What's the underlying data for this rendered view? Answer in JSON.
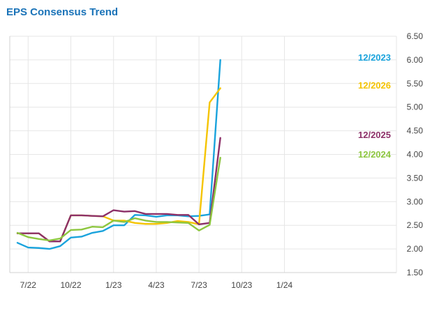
{
  "title": "EPS Consensus Trend",
  "colors": {
    "grid": "#e6e6e6",
    "axis": "#d0d0d0",
    "title": "#1a73b8"
  },
  "chart_data": {
    "type": "line",
    "title": "EPS Consensus Trend",
    "xlabel": "",
    "ylabel": "",
    "ylim": [
      1.5,
      6.5
    ],
    "yticks": [
      "6.50",
      "6.00",
      "5.50",
      "5.00",
      "4.50",
      "4.00",
      "3.50",
      "3.00",
      "2.50",
      "2.00",
      "1.50"
    ],
    "ytick_values": [
      6.5,
      6.0,
      5.5,
      5.0,
      4.5,
      4.0,
      3.5,
      3.0,
      2.5,
      2.0,
      1.5
    ],
    "xtick_labels": [
      "7/22",
      "10/22",
      "1/23",
      "4/23",
      "7/23",
      "10/23",
      "1/24"
    ],
    "xtick_index": [
      1,
      5,
      9,
      13,
      17,
      21,
      25
    ],
    "x_count": 30,
    "grid": true,
    "legend": "labels at line ends (right)",
    "series": [
      {
        "name": "12/2023",
        "color": "#1aa3dc",
        "values": [
          2.13,
          2.03,
          2.02,
          2.0,
          2.06,
          2.24,
          2.26,
          2.34,
          2.38,
          2.5,
          2.5,
          2.72,
          2.71,
          2.68,
          2.71,
          2.71,
          2.69,
          2.7,
          2.73,
          6.0
        ]
      },
      {
        "name": "12/2026",
        "color": "#f5c400",
        "values": [
          2.33,
          2.33,
          2.33,
          2.16,
          2.16,
          2.71,
          2.71,
          2.7,
          2.69,
          2.6,
          2.6,
          2.55,
          2.53,
          2.53,
          2.55,
          2.59,
          2.57,
          2.52,
          5.1,
          5.4
        ]
      },
      {
        "name": "12/2025",
        "color": "#8c3068",
        "values": [
          2.33,
          2.33,
          2.33,
          2.16,
          2.16,
          2.71,
          2.71,
          2.7,
          2.69,
          2.82,
          2.79,
          2.8,
          2.74,
          2.74,
          2.74,
          2.72,
          2.72,
          2.52,
          2.55,
          4.35
        ]
      },
      {
        "name": "12/2024",
        "color": "#8dc63f",
        "values": [
          2.34,
          2.25,
          2.21,
          2.18,
          2.22,
          2.4,
          2.41,
          2.47,
          2.46,
          2.6,
          2.57,
          2.65,
          2.6,
          2.57,
          2.57,
          2.56,
          2.55,
          2.39,
          2.51,
          3.93
        ]
      }
    ]
  }
}
